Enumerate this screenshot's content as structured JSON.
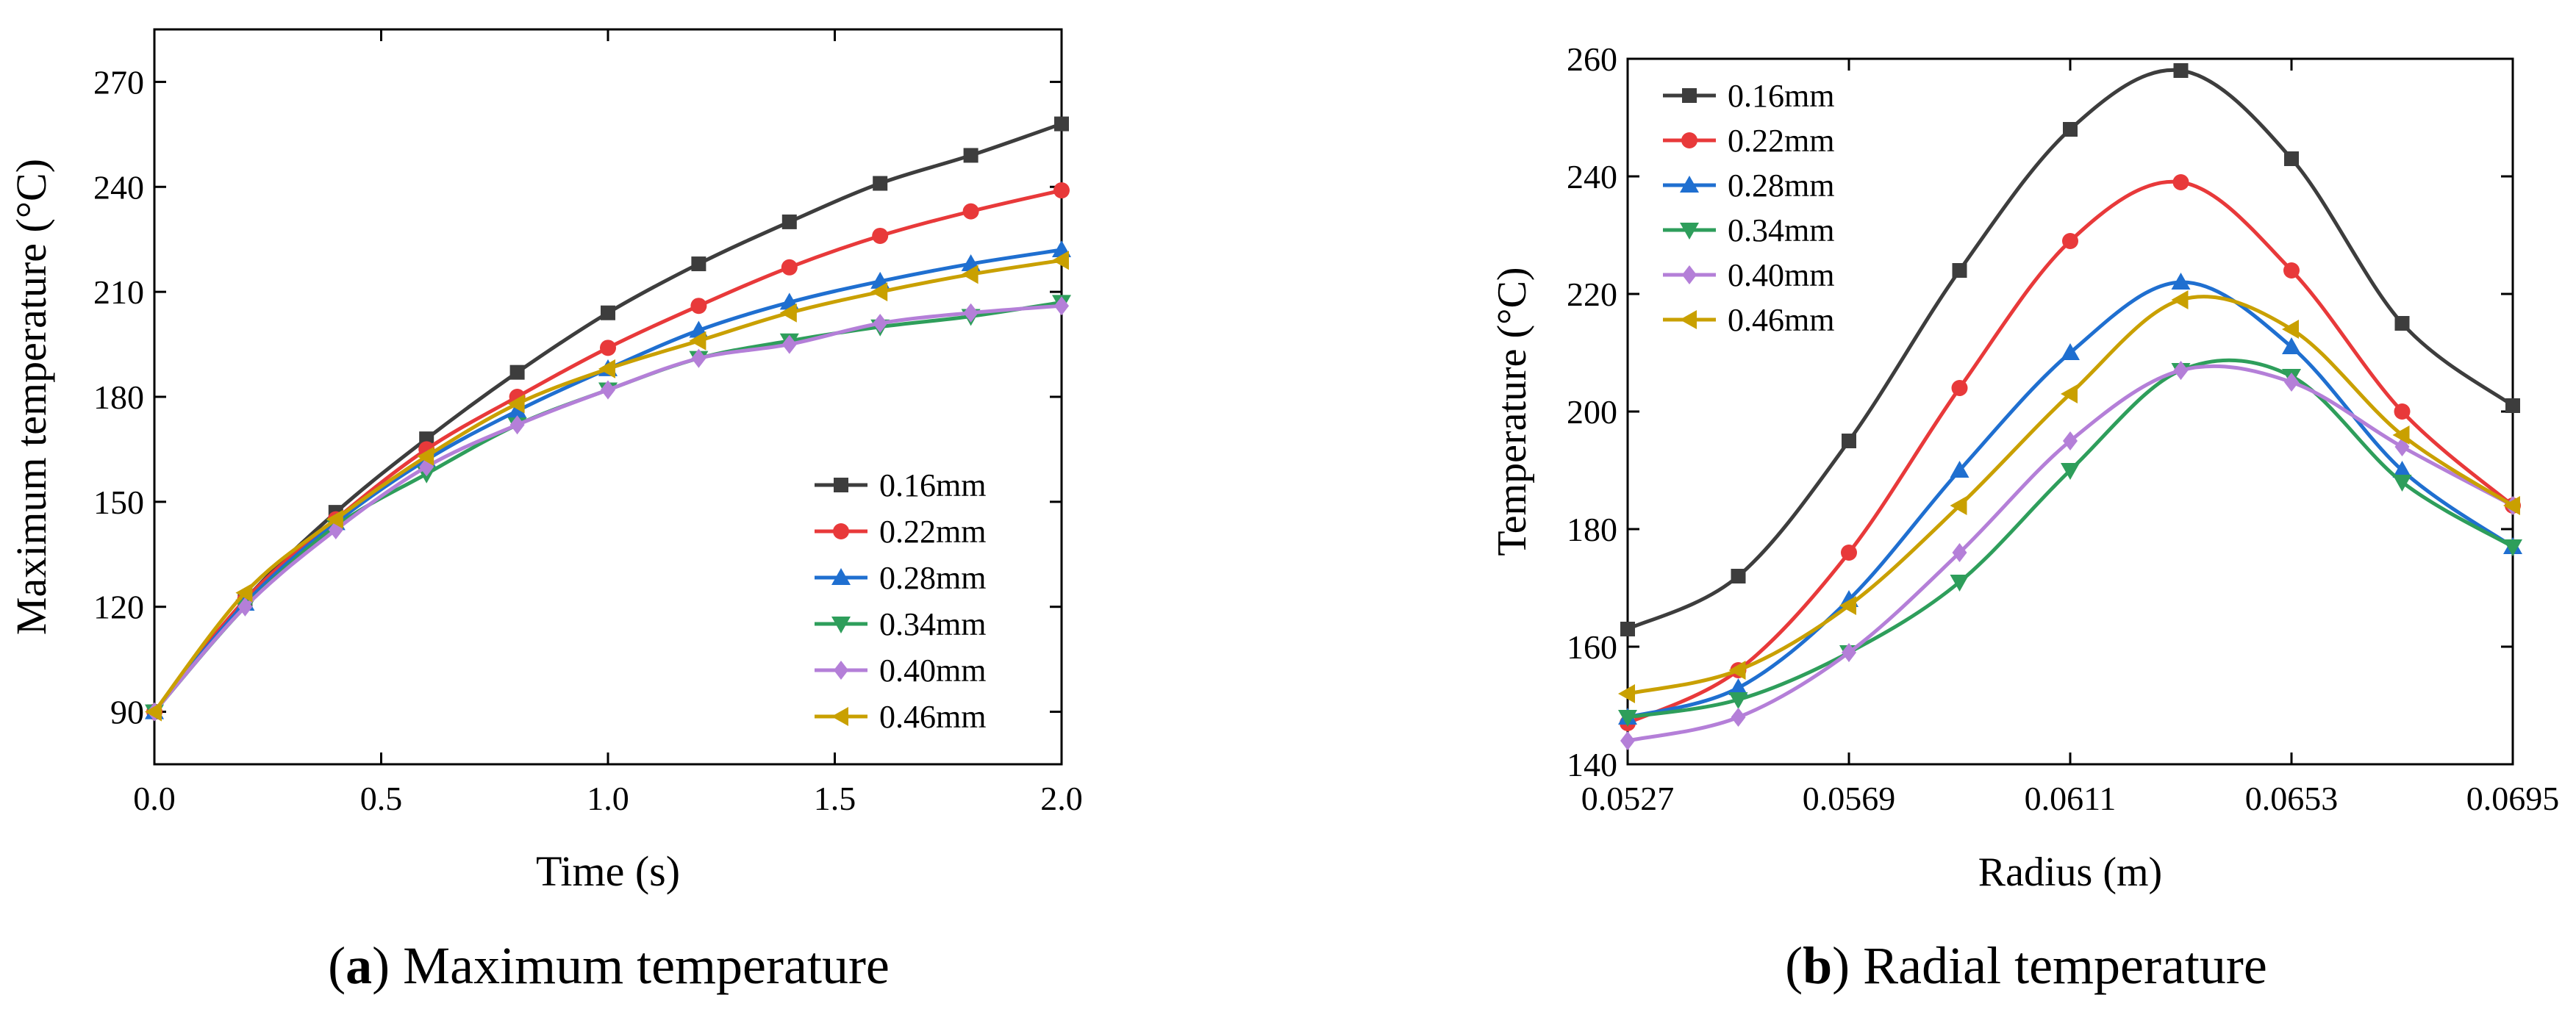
{
  "chart_data": [
    {
      "type": "line",
      "title": "",
      "caption_label": "a",
      "caption_text": "Maximum temperature",
      "xlabel": "Time (s)",
      "ylabel": "Maximum temperature (°C)",
      "xlim": [
        0,
        2
      ],
      "ylim": [
        75,
        285
      ],
      "xticks": [
        0,
        0.5,
        1,
        1.5,
        2
      ],
      "xtick_labels": [
        "0.0",
        "0.5",
        "1.0",
        "1.5",
        "2.0"
      ],
      "yticks": [
        90,
        120,
        150,
        180,
        210,
        240,
        270
      ],
      "ytick_labels": [
        "90",
        "120",
        "150",
        "180",
        "210",
        "240",
        "270"
      ],
      "grid": false,
      "legend_position": "bottom-right",
      "x": [
        0,
        0.2,
        0.4,
        0.6,
        0.8,
        1.0,
        1.2,
        1.4,
        1.6,
        1.8,
        2.0
      ],
      "series": [
        {
          "name": "0.16mm",
          "color": "#3d3d3d",
          "marker": "square",
          "values": [
            90,
            122,
            147,
            168,
            187,
            204,
            218,
            230,
            241,
            249,
            258
          ]
        },
        {
          "name": "0.22mm",
          "color": "#e8393a",
          "marker": "circle",
          "values": [
            90,
            122,
            145,
            165,
            180,
            194,
            206,
            217,
            226,
            233,
            239
          ]
        },
        {
          "name": "0.28mm",
          "color": "#1f6fd0",
          "marker": "triangle-up",
          "values": [
            90,
            121,
            144,
            162,
            176,
            188,
            199,
            207,
            213,
            218,
            222
          ]
        },
        {
          "name": "0.34mm",
          "color": "#2e9e5b",
          "marker": "triangle-down",
          "values": [
            90,
            120,
            143,
            158,
            172,
            182,
            191,
            196,
            200,
            203,
            207
          ]
        },
        {
          "name": "0.40mm",
          "color": "#b47fd8",
          "marker": "diamond",
          "values": [
            90,
            120,
            142,
            160,
            172,
            182,
            191,
            195,
            201,
            204,
            206
          ]
        },
        {
          "name": "0.46mm",
          "color": "#c9a000",
          "marker": "triangle-left",
          "values": [
            90,
            124,
            145,
            163,
            178,
            188,
            196,
            204,
            210,
            215,
            219
          ]
        }
      ]
    },
    {
      "type": "line",
      "title": "",
      "caption_label": "b",
      "caption_text": "Radial temperature",
      "xlabel": "Radius (m)",
      "ylabel": "Temperature (°C)",
      "xlim": [
        0.0527,
        0.0695
      ],
      "ylim": [
        140,
        260
      ],
      "xticks": [
        0.0527,
        0.0569,
        0.0611,
        0.0653,
        0.0695
      ],
      "xtick_labels": [
        "0.0527",
        "0.0569",
        "0.0611",
        "0.0653",
        "0.0695"
      ],
      "yticks": [
        140,
        160,
        180,
        200,
        220,
        240,
        260
      ],
      "ytick_labels": [
        "140",
        "160",
        "180",
        "200",
        "220",
        "240",
        "260"
      ],
      "grid": false,
      "legend_position": "top-left",
      "x": [
        0.0527,
        0.0548,
        0.0569,
        0.059,
        0.0611,
        0.0632,
        0.0653,
        0.0674,
        0.0695
      ],
      "series": [
        {
          "name": "0.16mm",
          "color": "#3d3d3d",
          "marker": "square",
          "values": [
            163,
            172,
            195,
            224,
            248,
            258,
            243,
            215,
            201
          ]
        },
        {
          "name": "0.22mm",
          "color": "#e8393a",
          "marker": "circle",
          "values": [
            147,
            156,
            176,
            204,
            229,
            239,
            224,
            200,
            184
          ]
        },
        {
          "name": "0.28mm",
          "color": "#1f6fd0",
          "marker": "triangle-up",
          "values": [
            148,
            153,
            168,
            190,
            210,
            222,
            211,
            190,
            177
          ]
        },
        {
          "name": "0.34mm",
          "color": "#2e9e5b",
          "marker": "triangle-down",
          "values": [
            148,
            151,
            159,
            171,
            190,
            207,
            206,
            188,
            177
          ]
        },
        {
          "name": "0.40mm",
          "color": "#b47fd8",
          "marker": "diamond",
          "values": [
            144,
            148,
            159,
            176,
            195,
            207,
            205,
            194,
            184
          ]
        },
        {
          "name": "0.46mm",
          "color": "#c9a000",
          "marker": "triangle-left",
          "values": [
            152,
            156,
            167,
            184,
            203,
            219,
            214,
            196,
            184
          ]
        }
      ]
    }
  ]
}
